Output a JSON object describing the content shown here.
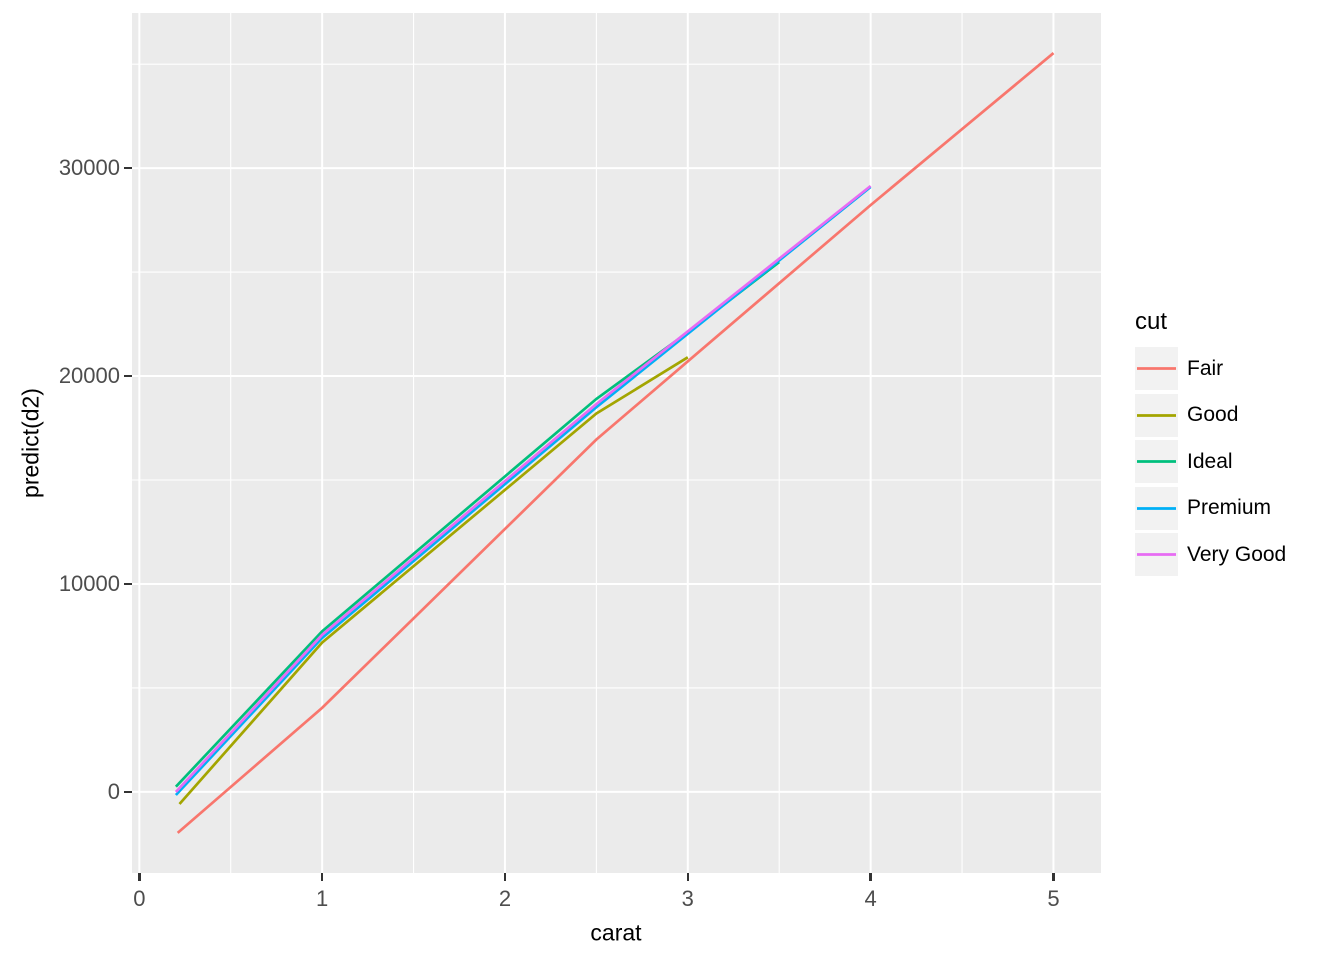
{
  "colors": {
    "panel_bg": "#EBEBEB",
    "grid": "#FFFFFF",
    "tick_mark": "#333333",
    "tick_text": "#4D4D4D",
    "axis_title_text": "#000000",
    "legend_key_bg": "#F2F2F2"
  },
  "chart_data": {
    "type": "line",
    "title": "",
    "xlabel": "carat",
    "ylabel": "predict(d2)",
    "xlim": [
      -0.04,
      5.26
    ],
    "ylim": [
      -3900,
      37460
    ],
    "grid": true,
    "legend_title": "cut",
    "legend_position": "right",
    "x_ticks": [
      {
        "value": 0,
        "label": "0"
      },
      {
        "value": 1,
        "label": "1"
      },
      {
        "value": 2,
        "label": "2"
      },
      {
        "value": 3,
        "label": "3"
      },
      {
        "value": 4,
        "label": "4"
      },
      {
        "value": 5,
        "label": "5"
      }
    ],
    "y_ticks": [
      {
        "value": 0,
        "label": "0"
      },
      {
        "value": 10000,
        "label": "10000"
      },
      {
        "value": 20000,
        "label": "20000"
      },
      {
        "value": 30000,
        "label": "30000"
      }
    ],
    "x_minor": [
      0.5,
      1.5,
      2.5,
      3.5,
      4.5
    ],
    "y_minor": [
      5000,
      15000,
      25000,
      35000
    ],
    "series": [
      {
        "name": "Fair",
        "color": "#F8766D",
        "points": [
          [
            0.21,
            -1970
          ],
          [
            1.0,
            4040
          ],
          [
            2.5,
            16950
          ],
          [
            4.0,
            28220
          ],
          [
            5.0,
            35530
          ]
        ]
      },
      {
        "name": "Good",
        "color": "#A3A500",
        "points": [
          [
            0.22,
            -580
          ],
          [
            1.0,
            7180
          ],
          [
            2.5,
            18200
          ],
          [
            3.0,
            20900
          ]
        ]
      },
      {
        "name": "Ideal",
        "color": "#00BF7D",
        "points": [
          [
            0.2,
            250
          ],
          [
            1.0,
            7720
          ],
          [
            2.5,
            18900
          ],
          [
            3.0,
            22100
          ],
          [
            3.5,
            25480
          ]
        ]
      },
      {
        "name": "Premium",
        "color": "#00B0F6",
        "points": [
          [
            0.2,
            -150
          ],
          [
            1.0,
            7400
          ],
          [
            2.5,
            18500
          ],
          [
            4.0,
            29090
          ]
        ]
      },
      {
        "name": "Very Good",
        "color": "#E76BF3",
        "points": [
          [
            0.2,
            0
          ],
          [
            1.0,
            7550
          ],
          [
            2.5,
            18650
          ],
          [
            4.0,
            29140
          ]
        ]
      }
    ]
  }
}
